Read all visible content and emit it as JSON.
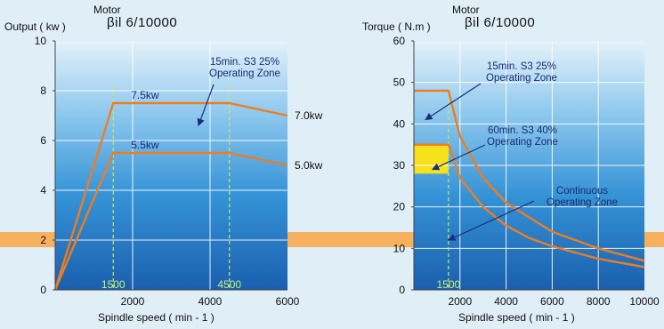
{
  "chart_data": [
    {
      "type": "line",
      "motor_label": "Motor",
      "model": "βil 6/10000",
      "ylabel": "Output ( kw )",
      "xlabel": "Spindle speed ( min - 1 )",
      "xlim": [
        0,
        6000
      ],
      "ylim": [
        0,
        10
      ],
      "x_ticks": [
        "2000",
        "4000",
        "6000"
      ],
      "y_ticks": [
        "0",
        "2",
        "4",
        "6",
        "8",
        "10"
      ],
      "reference_lines": [
        {
          "x": 1500,
          "label": "1500"
        },
        {
          "x": 4500,
          "label": "4500"
        }
      ],
      "series": [
        {
          "x": [
            0,
            1500,
            4500,
            6000
          ],
          "y": [
            0,
            7.5,
            7.5,
            7.0
          ],
          "peak_label": "7.5kw",
          "end_label": "7.0kw"
        },
        {
          "x": [
            0,
            1500,
            4500,
            6000
          ],
          "y": [
            0,
            5.5,
            5.5,
            5.0
          ],
          "peak_label": "5.5kw",
          "end_label": "5.0kw"
        }
      ],
      "annotations": [
        {
          "text": [
            "15min. S3 25%",
            "Operating Zone"
          ],
          "target": [
            3700,
            6.6
          ]
        }
      ],
      "colors": {
        "line": "#ee7d22",
        "guide": "#c6e86a",
        "grid": "#ffffff"
      }
    },
    {
      "type": "line",
      "motor_label": "Motor",
      "model": "βil 6/10000",
      "ylabel": "Torque ( N.m )",
      "xlabel": "Spindle speed ( min - 1 )",
      "xlim": [
        0,
        10000
      ],
      "ylim": [
        0,
        60
      ],
      "x_ticks": [
        "2000",
        "4000",
        "6000",
        "8000",
        "10000"
      ],
      "y_ticks": [
        "0",
        "10",
        "20",
        "30",
        "40",
        "50",
        "60"
      ],
      "reference_lines": [
        {
          "x": 1500,
          "label": "1500"
        }
      ],
      "series": [
        {
          "x": [
            0,
            1500,
            2000,
            3000,
            4000,
            5000,
            6000,
            7000,
            8000,
            9000,
            10000
          ],
          "y": [
            48,
            48,
            37,
            27,
            21,
            17.5,
            14,
            12,
            10,
            8.5,
            7
          ]
        },
        {
          "x": [
            0,
            1500,
            2000,
            3000,
            4000,
            5000,
            6000,
            7000,
            8000,
            9000,
            10000
          ],
          "y": [
            35,
            35,
            27,
            20,
            15.5,
            12.5,
            10.5,
            9,
            7.5,
            6.5,
            5.5
          ]
        }
      ],
      "shaded_zone": {
        "x": [
          0,
          1500
        ],
        "y": [
          28,
          35
        ],
        "color": "#f5e21c"
      },
      "annotations": [
        {
          "text": [
            "15min. S3 25%",
            "Operating Zone"
          ],
          "target": [
            500,
            41
          ]
        },
        {
          "text": [
            "60min. S3 40%",
            "Operating Zone"
          ],
          "target": [
            800,
            29
          ]
        },
        {
          "text": [
            "Continuous",
            "Operating Zone"
          ],
          "target": [
            1500,
            12
          ]
        }
      ],
      "colors": {
        "line": "#ee7d22",
        "guide": "#c6e86a",
        "grid": "#ffffff"
      }
    }
  ]
}
